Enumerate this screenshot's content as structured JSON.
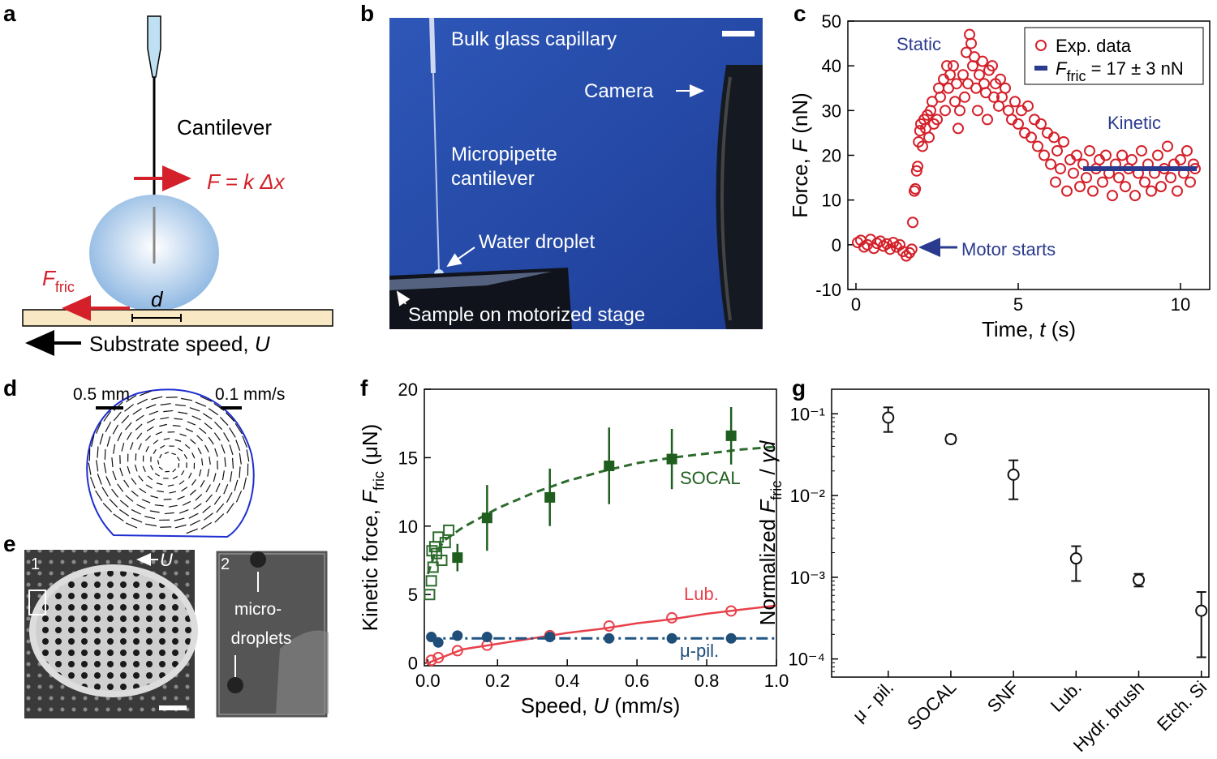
{
  "panel_labels": [
    "a",
    "b",
    "c",
    "d",
    "e",
    "f",
    "g"
  ],
  "panel_a": {
    "cantilever": "Cantilever",
    "force": "F = k Δx",
    "friction": "F",
    "friction_sub": "fric",
    "d": "d",
    "substrate": "Substrate speed, ",
    "substrate_var": "U"
  },
  "panel_b": {
    "capillary": "Bulk glass capillary",
    "camera": "Camera",
    "micropipette": "Micropipette",
    "cantilever": "cantilever",
    "droplet": "Water droplet",
    "sample": "Sample on motorized stage"
  },
  "panel_d": {
    "scale_length": "0.5 mm",
    "scale_speed": "0.1 mm/s"
  },
  "panel_e": {
    "inset_1": "1",
    "speed": "U",
    "inset_2": "2",
    "micro": "micro-",
    "droplets": "droplets"
  },
  "chart_data": [
    {
      "type": "scatter",
      "xlabel": [
        {
          "text": "Time, "
        },
        {
          "text": "t",
          "italic": true
        },
        {
          "text": " (s)"
        }
      ],
      "ylabel": [
        {
          "text": "Force, "
        },
        {
          "text": "F",
          "italic": true
        },
        {
          "text": " (nN)"
        }
      ],
      "xlim": [
        -0.25,
        10.9
      ],
      "ylim": [
        -10,
        50
      ],
      "xticks": [
        0,
        5,
        10
      ],
      "yticks": [
        -10,
        0,
        10,
        20,
        30,
        40,
        50
      ],
      "legend": "top-right",
      "annotations": [
        "Static",
        "Kinetic",
        "Motor starts"
      ],
      "series": [
        {
          "name": [
            {
              "text": "Exp. data"
            }
          ],
          "color": "#d4202a",
          "marker": "circle-open",
          "x": [
            0.05,
            0.15,
            0.25,
            0.35,
            0.45,
            0.55,
            0.65,
            0.75,
            0.85,
            0.95,
            1.05,
            1.15,
            1.25,
            1.35,
            1.45,
            1.55,
            1.65,
            1.72,
            1.75,
            1.8,
            1.83,
            1.87,
            1.9,
            1.93,
            1.97,
            2.0,
            2.05,
            2.1,
            2.15,
            2.2,
            2.25,
            2.3,
            2.35,
            2.4,
            2.5,
            2.55,
            2.6,
            2.7,
            2.75,
            2.8,
            2.85,
            2.9,
            3.0,
            3.05,
            3.1,
            3.15,
            3.2,
            3.3,
            3.35,
            3.4,
            3.45,
            3.5,
            3.55,
            3.6,
            3.65,
            3.7,
            3.75,
            3.8,
            3.9,
            3.95,
            4.0,
            4.05,
            4.1,
            4.2,
            4.25,
            4.3,
            4.4,
            4.45,
            4.5,
            4.6,
            4.7,
            4.8,
            4.9,
            5.0,
            5.1,
            5.2,
            5.3,
            5.4,
            5.5,
            5.6,
            5.7,
            5.8,
            5.9,
            6.0,
            6.1,
            6.15,
            6.2,
            6.3,
            6.4,
            6.5,
            6.6,
            6.7,
            6.8,
            6.9,
            7.0,
            7.1,
            7.2,
            7.3,
            7.4,
            7.5,
            7.6,
            7.7,
            7.8,
            7.9,
            8.0,
            8.1,
            8.2,
            8.3,
            8.4,
            8.5,
            8.6,
            8.7,
            8.8,
            8.9,
            9.0,
            9.1,
            9.2,
            9.3,
            9.4,
            9.5,
            9.6,
            9.7,
            9.8,
            9.9,
            10.0,
            10.1,
            10.2,
            10.3,
            10.4,
            10.45
          ],
          "values": [
            0.5,
            1,
            -0.5,
            0,
            1.2,
            -0.8,
            0.3,
            0.8,
            -0.3,
            0.2,
            -1,
            0.5,
            -0.5,
            0,
            -1.5,
            -2.5,
            -1.8,
            -1,
            5,
            12,
            12.5,
            16.5,
            17.5,
            23,
            25.5,
            27,
            22,
            28,
            26,
            29,
            24,
            30,
            32,
            27,
            28,
            35,
            33,
            37,
            30,
            40,
            35,
            38,
            40,
            32,
            36,
            26,
            30,
            38,
            33,
            43,
            36,
            47,
            45,
            40,
            42,
            35,
            30,
            38,
            41,
            36,
            34,
            28,
            39,
            40,
            33,
            36,
            31,
            37,
            33,
            35,
            30,
            28,
            32,
            27,
            30,
            25,
            31,
            24,
            28,
            22,
            27,
            20,
            25,
            18,
            24,
            14,
            21,
            17,
            23,
            12,
            19,
            16,
            20,
            13,
            18,
            15,
            21,
            12,
            17,
            19,
            14,
            20,
            16,
            11,
            18,
            15,
            20,
            13,
            17,
            19,
            11,
            16,
            21,
            14,
            18,
            12,
            16,
            20,
            13,
            17,
            22,
            15,
            18,
            12,
            19,
            16,
            21,
            14,
            18,
            17
          ]
        },
        {
          "name": [
            {
              "text": "F",
              "italic": true
            },
            {
              "text": "fric",
              "sub": true
            },
            {
              "text": " = 17 ± 3 nN"
            }
          ],
          "color": "#2a3a8f",
          "marker": "line",
          "width": 6,
          "x": [
            7,
            10.5
          ],
          "values": [
            17,
            17
          ]
        }
      ]
    },
    {
      "type": "scatter",
      "xlabel": [
        {
          "text": "Speed, "
        },
        {
          "text": "U",
          "italic": true
        },
        {
          "text": " (mm/s)"
        }
      ],
      "ylabel": [
        {
          "text": "Kinetic force, "
        },
        {
          "text": "F",
          "italic": true
        },
        {
          "text": "fric",
          "sub": true
        },
        {
          "text": " (μN)"
        }
      ],
      "xlim": [
        -0.01,
        1.0
      ],
      "ylim": [
        -0.2,
        20
      ],
      "xticks": [
        {
          "value": 0,
          "label": "0.0"
        },
        0.2,
        0.4,
        0.6,
        0.8,
        {
          "value": 1,
          "label": "1.0"
        }
      ],
      "yticks": [
        0,
        5,
        10,
        15,
        20
      ],
      "annotations": [
        "SOCAL",
        "Lub.",
        "μ-pil."
      ],
      "series": [
        {
          "color": "#2c6b2c",
          "marker": "line",
          "dash": "10 6",
          "width": 3,
          "x": [
            0,
            0.02,
            0.05,
            0.1,
            0.2,
            0.3,
            0.4,
            0.5,
            0.6,
            0.7,
            0.8,
            0.9,
            1.0
          ],
          "values": [
            6.5,
            8.0,
            9.0,
            9.9,
            11.3,
            12.4,
            13.3,
            14.0,
            14.6,
            15.0,
            15.3,
            15.6,
            15.8
          ]
        },
        {
          "color": "#e8414b",
          "marker": "line",
          "width": 2.5,
          "x": [
            0,
            0.1,
            0.2,
            0.3,
            0.4,
            0.5,
            0.6,
            0.7,
            0.8,
            0.9,
            1.0
          ],
          "values": [
            0,
            1.0,
            1.4,
            1.8,
            2.2,
            2.5,
            2.9,
            3.2,
            3.6,
            3.9,
            4.2
          ]
        },
        {
          "color": "#1f5580",
          "marker": "line",
          "dash": "14 5 3 5",
          "width": 3,
          "x": [
            0,
            1.0
          ],
          "values": [
            1.8,
            1.8
          ]
        },
        {
          "color": "#2c6b2c",
          "marker": "square-open",
          "x": [
            0.005,
            0.01,
            0.012,
            0.015,
            0.02,
            0.025,
            0.03,
            0.04,
            0.05,
            0.06
          ],
          "values": [
            5,
            6,
            8.2,
            7,
            8.5,
            8,
            9.2,
            7.5,
            8.8,
            9.7
          ]
        },
        {
          "color": "#1f5e1f",
          "marker": "square",
          "x": [
            0.085,
            0.17,
            0.35,
            0.52,
            0.7,
            0.87
          ],
          "values": [
            7.7,
            10.6,
            12.1,
            14.4,
            14.9,
            16.6
          ],
          "error": [
            1,
            2.4,
            2.1,
            2.8,
            2.2,
            2.1
          ]
        },
        {
          "color": "#e8414b",
          "marker": "circle-open",
          "x": [
            0.01,
            0.03,
            0.085,
            0.17,
            0.35,
            0.52,
            0.7,
            0.87
          ],
          "values": [
            0.2,
            0.4,
            0.9,
            1.3,
            2.0,
            2.7,
            3.3,
            3.8
          ]
        },
        {
          "color": "#1f4e79",
          "marker": "circle",
          "x": [
            0.01,
            0.03,
            0.085,
            0.17,
            0.35,
            0.52,
            0.7,
            0.87
          ],
          "values": [
            1.9,
            1.5,
            2.0,
            1.9,
            1.9,
            1.8,
            1.8,
            1.8
          ]
        }
      ]
    },
    {
      "type": "errorbar",
      "ylabel": [
        {
          "text": "Normalized "
        },
        {
          "text": "F",
          "italic": true
        },
        {
          "text": "fric",
          "sub": true
        },
        {
          "text": " / "
        },
        {
          "text": "γd",
          "italic": true
        }
      ],
      "log_y": true,
      "ylim": [
        6e-05,
        0.2
      ],
      "yticks": [
        {
          "value": 0.0001,
          "label": "10⁻⁴"
        },
        {
          "value": 0.001,
          "label": "10⁻³"
        },
        {
          "value": 0.01,
          "label": "10⁻²"
        },
        {
          "value": 0.1,
          "label": "10⁻¹"
        }
      ],
      "categories": [
        "μ - pil.",
        "SOCAL",
        "SNF",
        "Lub.",
        "Hydr. brush",
        "Etch. Si"
      ],
      "color": "#111111",
      "values": [
        0.09,
        0.049,
        0.018,
        0.0017,
        0.00093,
        0.00039
      ],
      "lower": [
        0.06,
        0.044,
        0.009,
        0.0009,
        0.00077,
        0.000105
      ],
      "upper": [
        0.12,
        0.055,
        0.027,
        0.0024,
        0.0011,
        0.00066
      ]
    }
  ]
}
